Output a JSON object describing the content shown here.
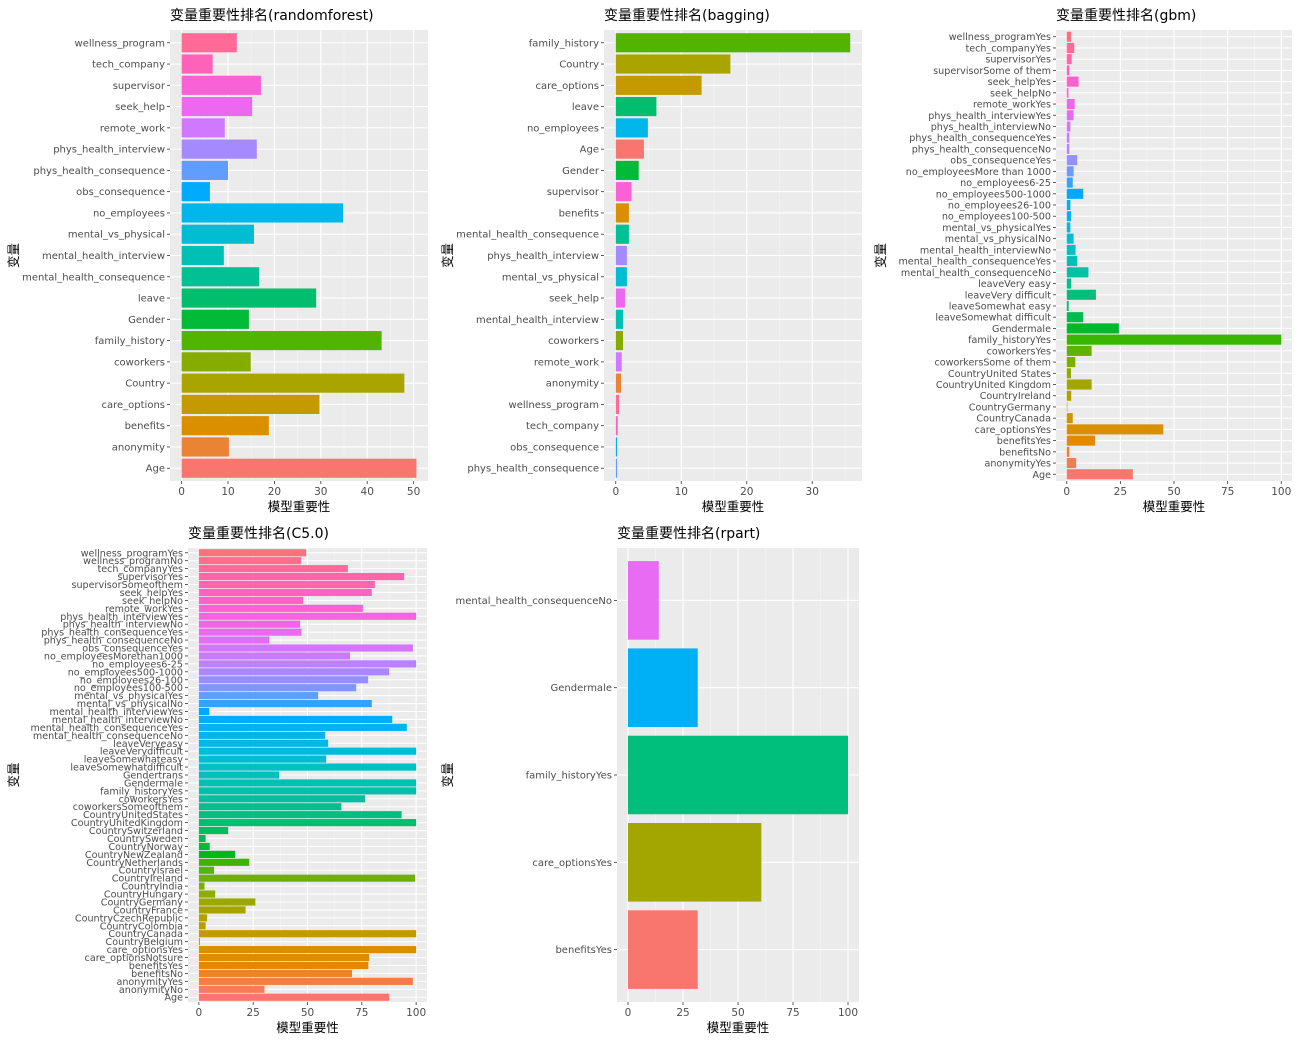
{
  "colors": {
    "panel_bg": "#EBEBEB",
    "grid": "#FFFFFF",
    "axis_text": "#4D4D4D",
    "palette": "ggplot2 hue, one color per variable"
  },
  "chart_data": [
    {
      "type": "bar",
      "orientation": "horizontal",
      "title": "变量重要性排名(randomforest)",
      "xlabel": "模型重要性",
      "ylabel": "变量",
      "xlim": [
        -2.5,
        53.1
      ],
      "xticks": [
        0,
        10,
        20,
        30,
        40,
        50
      ],
      "grid": true,
      "categories": [
        "Age",
        "anonymity",
        "benefits",
        "care_options",
        "Country",
        "coworkers",
        "family_history",
        "Gender",
        "leave",
        "mental_health_consequence",
        "mental_health_interview",
        "mental_vs_physical",
        "no_employees",
        "obs_consequence",
        "phys_health_consequence",
        "phys_health_interview",
        "remote_work",
        "seek_help",
        "supervisor",
        "tech_company",
        "wellness_program"
      ],
      "values": [
        50.6,
        10.2,
        18.8,
        29.7,
        48.0,
        14.9,
        43.1,
        14.5,
        29.0,
        16.7,
        9.1,
        15.6,
        34.8,
        6.1,
        10.0,
        16.2,
        9.3,
        15.2,
        17.1,
        6.7,
        11.9
      ]
    },
    {
      "type": "bar",
      "orientation": "horizontal",
      "title": "变量重要性排名(bagging)",
      "xlabel": "模型重要性",
      "ylabel": "变量",
      "xlim": [
        -1.8,
        37.6
      ],
      "xticks": [
        0,
        10,
        20,
        30
      ],
      "grid": true,
      "categories": [
        "phys_health_consequence",
        "obs_consequence",
        "tech_company",
        "wellness_program",
        "anonymity",
        "remote_work",
        "coworkers",
        "mental_health_interview",
        "seek_help",
        "mental_vs_physical",
        "phys_health_interview",
        "mental_health_consequence",
        "benefits",
        "supervisor",
        "Gender",
        "Age",
        "no_employees",
        "leave",
        "care_options",
        "Country",
        "family_history"
      ],
      "values": [
        0.2,
        0.2,
        0.3,
        0.5,
        0.8,
        0.9,
        1.1,
        1.1,
        1.4,
        1.7,
        1.7,
        2.0,
        2.0,
        2.4,
        3.5,
        4.3,
        4.9,
        6.2,
        13.1,
        17.5,
        35.8
      ]
    },
    {
      "type": "bar",
      "orientation": "horizontal",
      "title": "变量重要性排名(gbm)",
      "xlabel": "模型重要性",
      "ylabel": "变量",
      "xlim": [
        -5,
        105
      ],
      "xticks": [
        0,
        25,
        50,
        75,
        100
      ],
      "grid": true,
      "categories": [
        "Age",
        "anonymityYes",
        "benefitsNo",
        "benefitsYes",
        "care_optionsYes",
        "CountryCanada",
        "CountryGermany",
        "CountryIreland",
        "CountryUnited Kingdom",
        "CountryUnited States",
        "coworkersSome of them",
        "coworkersYes",
        "family_historyYes",
        "Gendermale",
        "leaveSomewhat difficult",
        "leaveSomewhat easy",
        "leaveVery difficult",
        "leaveVery easy",
        "mental_health_consequenceNo",
        "mental_health_consequenceYes",
        "mental_health_interviewNo",
        "mental_vs_physicalNo",
        "mental_vs_physicalYes",
        "no_employees100-500",
        "no_employees26-100",
        "no_employees500-1000",
        "no_employees6-25",
        "no_employeesMore than 1000",
        "obs_consequenceYes",
        "phys_health_consequenceNo",
        "phys_health_consequenceYes",
        "phys_health_interviewNo",
        "phys_health_interviewYes",
        "remote_workYes",
        "seek_helpNo",
        "seek_helpYes",
        "supervisorSome of them",
        "supervisorYes",
        "tech_companyYes",
        "wellness_programYes"
      ],
      "values": [
        30.8,
        4.4,
        1.2,
        13.2,
        45.0,
        2.8,
        0.3,
        2.1,
        11.6,
        2.0,
        4.0,
        11.6,
        100,
        24.3,
        7.7,
        0.9,
        13.6,
        2.0,
        10.1,
        4.9,
        4.1,
        3.2,
        1.7,
        2.0,
        1.7,
        7.7,
        2.8,
        3.2,
        4.9,
        1.2,
        1.2,
        1.7,
        3.2,
        3.7,
        0.8,
        5.5,
        1.2,
        2.3,
        3.5,
        2.0
      ]
    },
    {
      "type": "bar",
      "orientation": "horizontal",
      "title": "变量重要性排名(C5.0)",
      "xlabel": "模型重要性",
      "ylabel": "变量",
      "xlim": [
        -5,
        105
      ],
      "xticks": [
        0,
        25,
        50,
        75,
        100
      ],
      "grid": true,
      "categories": [
        "Age",
        "anonymityNo",
        "anonymityYes",
        "benefitsNo",
        "benefitsYes",
        "care_optionsNotsure",
        "care_optionsYes",
        "CountryBelgium",
        "CountryCanada",
        "CountryColombia",
        "CountryCzechRepublic",
        "CountryFrance",
        "CountryGermany",
        "CountryHungary",
        "CountryIndia",
        "CountryIreland",
        "CountryIsrael",
        "CountryNetherlands",
        "CountryNewZealand",
        "CountryNorway",
        "CountrySweden",
        "CountrySwitzerland",
        "CountryUnitedKingdom",
        "CountryUnitedStates",
        "coworkersSomeofthem",
        "coworkersYes",
        "family_historyYes",
        "Gendermale",
        "Gendertrans",
        "leaveSomewhatdifficult",
        "leaveSomewhateasy",
        "leaveVerydifficult",
        "leaveVeryeasy",
        "mental_health_consequenceNo",
        "mental_health_consequenceYes",
        "mental_health_interviewNo",
        "mental_health_interviewYes",
        "mental_vs_physicalNo",
        "mental_vs_physicalYes",
        "no_employees100-500",
        "no_employees26-100",
        "no_employees500-1000",
        "no_employees6-25",
        "no_employeesMorethan1000",
        "obs_consequenceYes",
        "phys_health_consequenceNo",
        "phys_health_consequenceYes",
        "phys_health_interviewNo",
        "phys_health_interviewYes",
        "remote_workYes",
        "seek_helpNo",
        "seek_helpYes",
        "supervisorSomeofthem",
        "supervisorYes",
        "tech_companyYes",
        "wellness_programNo",
        "wellness_programYes"
      ],
      "values": [
        87.6,
        30.2,
        98.5,
        70.5,
        78.0,
        78.4,
        100,
        0.5,
        100,
        3.1,
        3.8,
        21.5,
        26.0,
        7.5,
        2.6,
        99.5,
        7.0,
        23.2,
        16.7,
        5.0,
        3.1,
        13.5,
        100,
        93.3,
        65.6,
        76.5,
        100,
        100,
        37.0,
        100,
        58.6,
        100,
        59.5,
        58.1,
        95.7,
        89.0,
        4.8,
        79.6,
        54.9,
        72.4,
        77.9,
        87.6,
        100,
        69.6,
        98.5,
        32.4,
        47.2,
        46.6,
        100,
        75.5,
        48.0,
        79.6,
        81.0,
        94.5,
        68.6,
        47.0,
        49.4
      ]
    },
    {
      "type": "bar",
      "orientation": "horizontal",
      "title": "变量重要性排名(rpart)",
      "xlabel": "模型重要性",
      "ylabel": "变量",
      "xlim": [
        -5,
        105
      ],
      "xticks": [
        0,
        25,
        50,
        75,
        100
      ],
      "grid": true,
      "categories": [
        "benefitsYes",
        "care_optionsYes",
        "family_historyYes",
        "Gendermale",
        "mental_health_consequenceNo"
      ],
      "values": [
        31.7,
        60.6,
        100,
        31.7,
        14.0
      ]
    }
  ]
}
